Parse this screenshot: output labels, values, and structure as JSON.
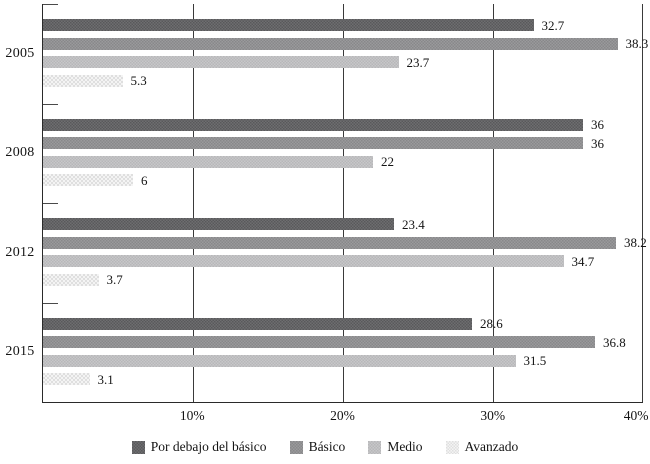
{
  "chart_data": {
    "type": "bar",
    "orientation": "horizontal",
    "title": "",
    "categories": [
      "2005",
      "2008",
      "2012",
      "2015"
    ],
    "series": [
      {
        "name": "Por debajo del básico",
        "color": "#5e5e60",
        "values": [
          32.7,
          36,
          23.4,
          28.6
        ],
        "labels": [
          "32.7",
          "36",
          "23.4",
          "28.6"
        ]
      },
      {
        "name": "Básico",
        "color": "#8f8f91",
        "values": [
          38.3,
          36,
          38.2,
          36.8
        ],
        "labels": [
          "38.3",
          "36",
          "38.2",
          "36.8"
        ]
      },
      {
        "name": "Medio",
        "color": "#c1c1c3",
        "values": [
          23.7,
          22,
          34.7,
          31.5
        ],
        "labels": [
          "23.7",
          "22",
          "34.7",
          "31.5"
        ]
      },
      {
        "name": "Avanzado",
        "color": "#e6e6e6",
        "values": [
          5.3,
          6,
          3.7,
          3.1
        ],
        "labels": [
          "5.3",
          "6",
          "3.7",
          "3.1"
        ]
      }
    ],
    "xlim": [
      0,
      40
    ],
    "x_ticks": [
      {
        "value": 10,
        "label": "10%"
      },
      {
        "value": 20,
        "label": "20%"
      },
      {
        "value": 30,
        "label": "30%"
      },
      {
        "value": 40,
        "label": "40%"
      }
    ],
    "grid": true,
    "grid_color": "#3a3a3a",
    "legend_position": "bottom",
    "background": "#ffffff"
  }
}
